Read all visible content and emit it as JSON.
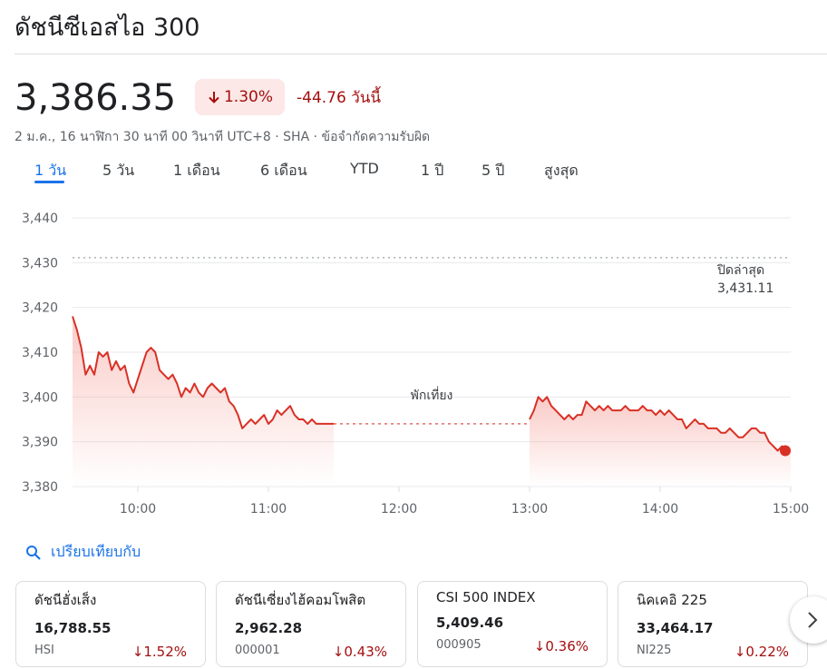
{
  "page_title": "ดัชนีซีเอสไอ 300",
  "quote": {
    "price": "3,386.35",
    "change_pct": "1.30%",
    "change_abs": "-44.76 วันนี้",
    "subline": "2 ม.ค., 16 นาฬิกา 30 นาที 00 วินาที UTC+8 · SHA · ข้อจำกัดความรับผิด",
    "down_color": "#a50e0e"
  },
  "tabs": [
    "1 วัน",
    "5 วัน",
    "1 เดือน",
    "6 เดือน",
    "YTD",
    "1 ปี",
    "5 ปี",
    "สูงสุด"
  ],
  "chart_data": {
    "type": "line",
    "y_ticks": [
      "3,440",
      "3,430",
      "3,420",
      "3,410",
      "3,400",
      "3,390",
      "3,380"
    ],
    "x_ticks": [
      "10:00",
      "11:00",
      "12:00",
      "13:00",
      "14:00",
      "15:00"
    ],
    "ylim": [
      3380,
      3440
    ],
    "prev_close_label": "ปิดล่าสุด",
    "prev_close_value": "3,431.11",
    "prev_close": 3431.11,
    "break_label": "พักเที่ยง",
    "line_color": "#d93025",
    "morning": [
      [
        "09:30",
        3418
      ],
      [
        "09:32",
        3415
      ],
      [
        "09:34",
        3411
      ],
      [
        "09:36",
        3405
      ],
      [
        "09:38",
        3407
      ],
      [
        "09:40",
        3405
      ],
      [
        "09:42",
        3410
      ],
      [
        "09:44",
        3409
      ],
      [
        "09:46",
        3410
      ],
      [
        "09:48",
        3406
      ],
      [
        "09:50",
        3408
      ],
      [
        "09:52",
        3406
      ],
      [
        "09:54",
        3407
      ],
      [
        "09:56",
        3403
      ],
      [
        "09:58",
        3401
      ],
      [
        "10:00",
        3404
      ],
      [
        "10:02",
        3407
      ],
      [
        "10:04",
        3410
      ],
      [
        "10:06",
        3411
      ],
      [
        "10:08",
        3410
      ],
      [
        "10:10",
        3406
      ],
      [
        "10:12",
        3405
      ],
      [
        "10:14",
        3404
      ],
      [
        "10:16",
        3405
      ],
      [
        "10:18",
        3403
      ],
      [
        "10:20",
        3400
      ],
      [
        "10:22",
        3402
      ],
      [
        "10:24",
        3401
      ],
      [
        "10:26",
        3403
      ],
      [
        "10:28",
        3401
      ],
      [
        "10:30",
        3400
      ],
      [
        "10:32",
        3402
      ],
      [
        "10:34",
        3403
      ],
      [
        "10:36",
        3402
      ],
      [
        "10:38",
        3401
      ],
      [
        "10:40",
        3402
      ],
      [
        "10:42",
        3399
      ],
      [
        "10:44",
        3398
      ],
      [
        "10:46",
        3396
      ],
      [
        "10:48",
        3393
      ],
      [
        "10:50",
        3394
      ],
      [
        "10:52",
        3395
      ],
      [
        "10:54",
        3394
      ],
      [
        "10:56",
        3395
      ],
      [
        "10:58",
        3396
      ],
      [
        "11:00",
        3394
      ],
      [
        "11:02",
        3395
      ],
      [
        "11:04",
        3397
      ],
      [
        "11:06",
        3396
      ],
      [
        "11:08",
        3397
      ],
      [
        "11:10",
        3398
      ],
      [
        "11:12",
        3396
      ],
      [
        "11:14",
        3395
      ],
      [
        "11:16",
        3395
      ],
      [
        "11:18",
        3394
      ],
      [
        "11:20",
        3395
      ],
      [
        "11:22",
        3394
      ],
      [
        "11:24",
        3394
      ],
      [
        "11:26",
        3394
      ],
      [
        "11:28",
        3394
      ],
      [
        "11:30",
        3394
      ]
    ],
    "afternoon": [
      [
        "13:00",
        3395
      ],
      [
        "13:02",
        3397
      ],
      [
        "13:04",
        3400
      ],
      [
        "13:06",
        3399
      ],
      [
        "13:08",
        3400
      ],
      [
        "13:10",
        3398
      ],
      [
        "13:12",
        3397
      ],
      [
        "13:14",
        3396
      ],
      [
        "13:16",
        3395
      ],
      [
        "13:18",
        3396
      ],
      [
        "13:20",
        3395
      ],
      [
        "13:22",
        3396
      ],
      [
        "13:24",
        3396
      ],
      [
        "13:26",
        3399
      ],
      [
        "13:28",
        3398
      ],
      [
        "13:30",
        3397
      ],
      [
        "13:32",
        3398
      ],
      [
        "13:34",
        3397
      ],
      [
        "13:36",
        3398
      ],
      [
        "13:38",
        3397
      ],
      [
        "13:40",
        3397
      ],
      [
        "13:42",
        3397
      ],
      [
        "13:44",
        3398
      ],
      [
        "13:46",
        3397
      ],
      [
        "13:48",
        3397
      ],
      [
        "13:50",
        3397
      ],
      [
        "13:52",
        3398
      ],
      [
        "13:54",
        3397
      ],
      [
        "13:56",
        3397
      ],
      [
        "13:58",
        3396
      ],
      [
        "14:00",
        3397
      ],
      [
        "14:02",
        3396
      ],
      [
        "14:04",
        3397
      ],
      [
        "14:06",
        3396
      ],
      [
        "14:08",
        3395
      ],
      [
        "14:10",
        3395
      ],
      [
        "14:12",
        3393
      ],
      [
        "14:14",
        3394
      ],
      [
        "14:16",
        3395
      ],
      [
        "14:18",
        3394
      ],
      [
        "14:20",
        3394
      ],
      [
        "14:22",
        3393
      ],
      [
        "14:24",
        3393
      ],
      [
        "14:26",
        3393
      ],
      [
        "14:28",
        3392
      ],
      [
        "14:30",
        3392
      ],
      [
        "14:32",
        3393
      ],
      [
        "14:34",
        3392
      ],
      [
        "14:36",
        3391
      ],
      [
        "14:38",
        3391
      ],
      [
        "14:40",
        3392
      ],
      [
        "14:42",
        3393
      ],
      [
        "14:44",
        3393
      ],
      [
        "14:46",
        3392
      ],
      [
        "14:48",
        3392
      ],
      [
        "14:50",
        3390
      ],
      [
        "14:52",
        3389
      ],
      [
        "14:54",
        3388
      ],
      [
        "14:56",
        3389
      ],
      [
        "14:58",
        3388
      ],
      [
        "15:00",
        3388
      ]
    ]
  },
  "compare": {
    "label": "เปรียบเทียบกับ"
  },
  "cards": [
    {
      "name": "ดัชนีฮั่งเส็ง",
      "price": "16,788.55",
      "symbol": "HSI",
      "change": "1.52%"
    },
    {
      "name": "ดัชนีเซี่ยงไฮ้คอมโพสิต",
      "price": "2,962.28",
      "symbol": "000001",
      "change": "0.43%"
    },
    {
      "name": "CSI 500 INDEX",
      "price": "5,409.46",
      "symbol": "000905",
      "change": "0.36%"
    },
    {
      "name": "นิคเคอิ 225",
      "price": "33,464.17",
      "symbol": "NI225",
      "change": "0.22%"
    }
  ]
}
